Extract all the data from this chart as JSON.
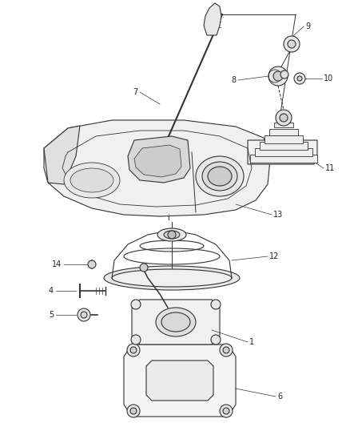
{
  "bg_color": "#ffffff",
  "line_color": "#333333",
  "label_color": "#222222",
  "lw": 0.8,
  "figsize": [
    4.38,
    5.33
  ],
  "dpi": 100
}
